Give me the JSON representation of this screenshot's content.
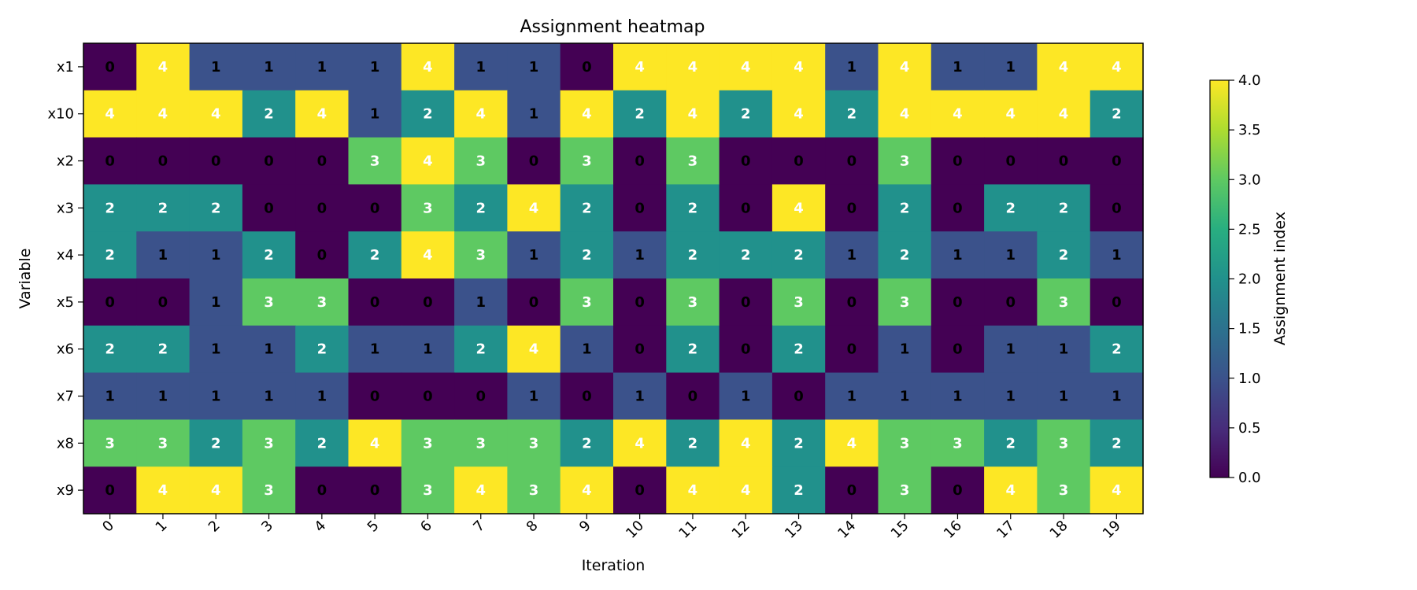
{
  "chart_data": {
    "type": "heatmap",
    "title": "Assignment heatmap",
    "xlabel": "Iteration",
    "ylabel": "Variable",
    "x_categories": [
      "0",
      "1",
      "2",
      "3",
      "4",
      "5",
      "6",
      "7",
      "8",
      "9",
      "10",
      "11",
      "12",
      "13",
      "14",
      "15",
      "16",
      "17",
      "18",
      "19"
    ],
    "y_categories": [
      "x1",
      "x10",
      "x2",
      "x3",
      "x4",
      "x5",
      "x6",
      "x7",
      "x8",
      "x9"
    ],
    "values": [
      [
        0,
        4,
        1,
        1,
        1,
        1,
        4,
        1,
        1,
        0,
        4,
        4,
        4,
        4,
        1,
        4,
        1,
        1,
        4,
        4
      ],
      [
        4,
        4,
        4,
        2,
        4,
        1,
        2,
        4,
        1,
        4,
        2,
        4,
        2,
        4,
        2,
        4,
        4,
        4,
        4,
        2
      ],
      [
        0,
        0,
        0,
        0,
        0,
        3,
        4,
        3,
        0,
        3,
        0,
        3,
        0,
        0,
        0,
        3,
        0,
        0,
        0,
        0
      ],
      [
        2,
        2,
        2,
        0,
        0,
        0,
        3,
        2,
        4,
        2,
        0,
        2,
        0,
        4,
        0,
        2,
        0,
        2,
        2,
        0
      ],
      [
        2,
        1,
        1,
        2,
        0,
        2,
        4,
        3,
        1,
        2,
        1,
        2,
        2,
        2,
        1,
        2,
        1,
        1,
        2,
        1
      ],
      [
        0,
        0,
        1,
        3,
        3,
        0,
        0,
        1,
        0,
        3,
        0,
        3,
        0,
        3,
        0,
        3,
        0,
        0,
        3,
        0
      ],
      [
        2,
        2,
        1,
        1,
        2,
        1,
        1,
        2,
        4,
        1,
        0,
        2,
        0,
        2,
        0,
        1,
        0,
        1,
        1,
        2
      ],
      [
        1,
        1,
        1,
        1,
        1,
        0,
        0,
        0,
        1,
        0,
        1,
        0,
        1,
        0,
        1,
        1,
        1,
        1,
        1,
        1
      ],
      [
        3,
        3,
        2,
        3,
        2,
        4,
        3,
        3,
        3,
        2,
        4,
        2,
        4,
        2,
        4,
        3,
        3,
        2,
        3,
        2
      ],
      [
        0,
        4,
        4,
        3,
        0,
        0,
        3,
        4,
        3,
        4,
        0,
        4,
        4,
        2,
        0,
        3,
        0,
        4,
        3,
        4
      ]
    ],
    "value_range": [
      0,
      4
    ],
    "colormap": "viridis",
    "colorbar": {
      "label": "Assignment index",
      "ticks": [
        "0.0",
        "0.5",
        "1.0",
        "1.5",
        "2.0",
        "2.5",
        "3.0",
        "3.5",
        "4.0"
      ]
    },
    "level_colors": {
      "0": "#440154",
      "1": "#3b528b",
      "2": "#21918c",
      "3": "#5ec962",
      "4": "#fde725"
    },
    "annotation_colors": {
      "dark_text": "#000000",
      "light_text": "#ffffff"
    }
  }
}
